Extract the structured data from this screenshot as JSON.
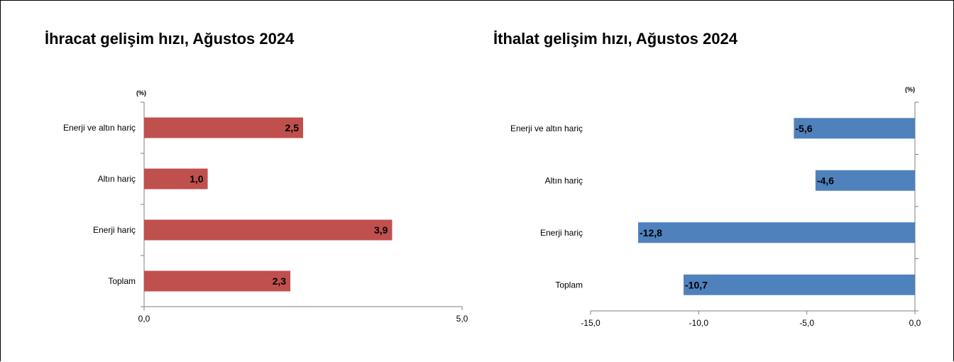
{
  "chart_data": [
    {
      "type": "bar",
      "orientation": "horizontal",
      "title": "İhracat gelişim hızı, Ağustos 2024",
      "unit": "(%)",
      "categories": [
        "Enerji ve altın hariç",
        "Altın hariç",
        "Enerji hariç",
        "Toplam"
      ],
      "values": [
        2.5,
        1.0,
        3.9,
        2.3
      ],
      "data_labels": [
        "2,5",
        "1,0",
        "3,9",
        "2,3"
      ],
      "xlim": [
        0,
        5
      ],
      "ticks": [
        0,
        5
      ],
      "tick_labels": [
        "0,0",
        "5,0"
      ],
      "bar_color": "#C0504D",
      "grid": false,
      "legend": "none"
    },
    {
      "type": "bar",
      "orientation": "horizontal",
      "title": "İthalat gelişim hızı, Ağustos 2024",
      "unit": "(%)",
      "categories": [
        "Enerji ve altın hariç",
        "Altın hariç",
        "Enerji hariç",
        "Toplam"
      ],
      "values": [
        -5.6,
        -4.6,
        -12.8,
        -10.7
      ],
      "data_labels": [
        "-5,6",
        "-4,6",
        "-12,8",
        "-10,7"
      ],
      "xlim": [
        -15,
        0
      ],
      "ticks": [
        -15,
        -10,
        -5,
        0
      ],
      "tick_labels": [
        "-15,0",
        "-10,0",
        "-5,0",
        "0,0"
      ],
      "bar_color": "#4F81BD",
      "grid": false,
      "legend": "none"
    }
  ]
}
